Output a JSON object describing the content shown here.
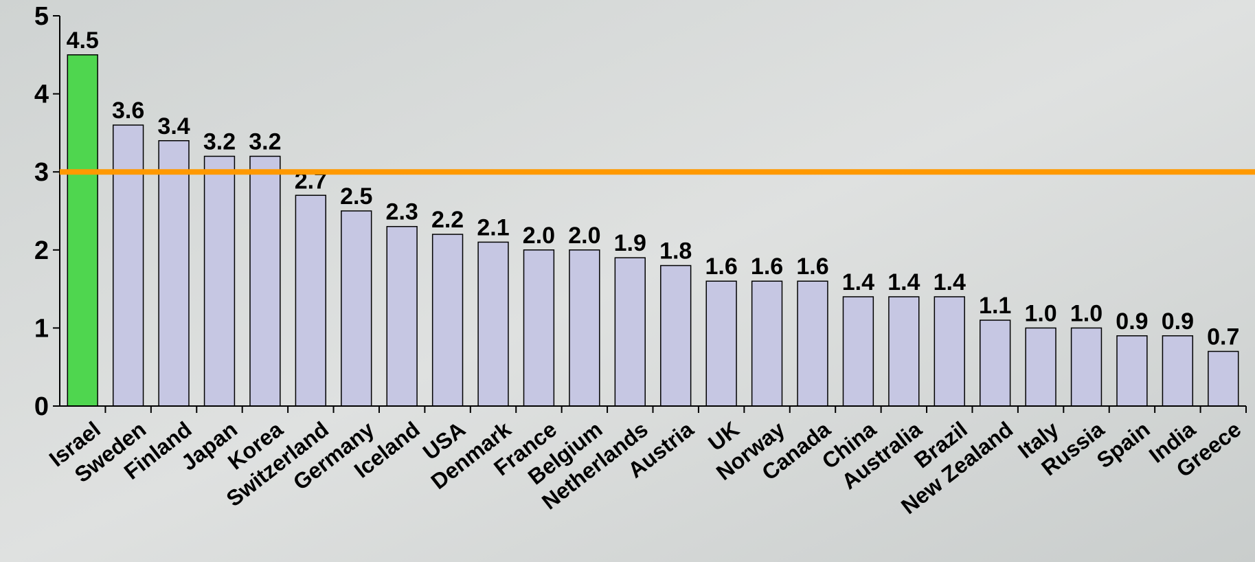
{
  "chart_data": {
    "type": "bar",
    "categories": [
      "Israel",
      "Sweden",
      "Finland",
      "Japan",
      "Korea",
      "Switzerland",
      "Germany",
      "Iceland",
      "USA",
      "Denmark",
      "France",
      "Belgium",
      "Netherlands",
      "Austria",
      "UK",
      "Norway",
      "Canada",
      "China",
      "Australia",
      "Brazil",
      "New Zealand",
      "Italy",
      "Russia",
      "Spain",
      "India",
      "Greece"
    ],
    "values": [
      4.5,
      3.6,
      3.4,
      3.2,
      3.2,
      2.7,
      2.5,
      2.3,
      2.2,
      2.1,
      2.0,
      2.0,
      1.9,
      1.8,
      1.6,
      1.6,
      1.6,
      1.4,
      1.4,
      1.4,
      1.1,
      1.0,
      1.0,
      0.9,
      0.9,
      0.7
    ],
    "value_labels": [
      "4.5",
      "3.6",
      "3.4",
      "3.2",
      "3.2",
      "2.7",
      "2.5",
      "2.3",
      "2.2",
      "2.1",
      "2.0",
      "2.0",
      "1.9",
      "1.8",
      "1.6",
      "1.6",
      "1.6",
      "1.4",
      "1.4",
      "1.4",
      "1.1",
      "1.0",
      "1.0",
      "0.9",
      "0.9",
      "0.7"
    ],
    "color": "#c6c7e3",
    "highlight": {
      "index": 0,
      "color": "#4fd64f",
      "label_color": "#1a3fd0"
    },
    "reference_line": {
      "value": 3,
      "color": "#ff9900"
    },
    "ylim": [
      0,
      5
    ],
    "yticks": [
      0,
      1,
      2,
      3,
      4,
      5
    ],
    "grid": false
  }
}
